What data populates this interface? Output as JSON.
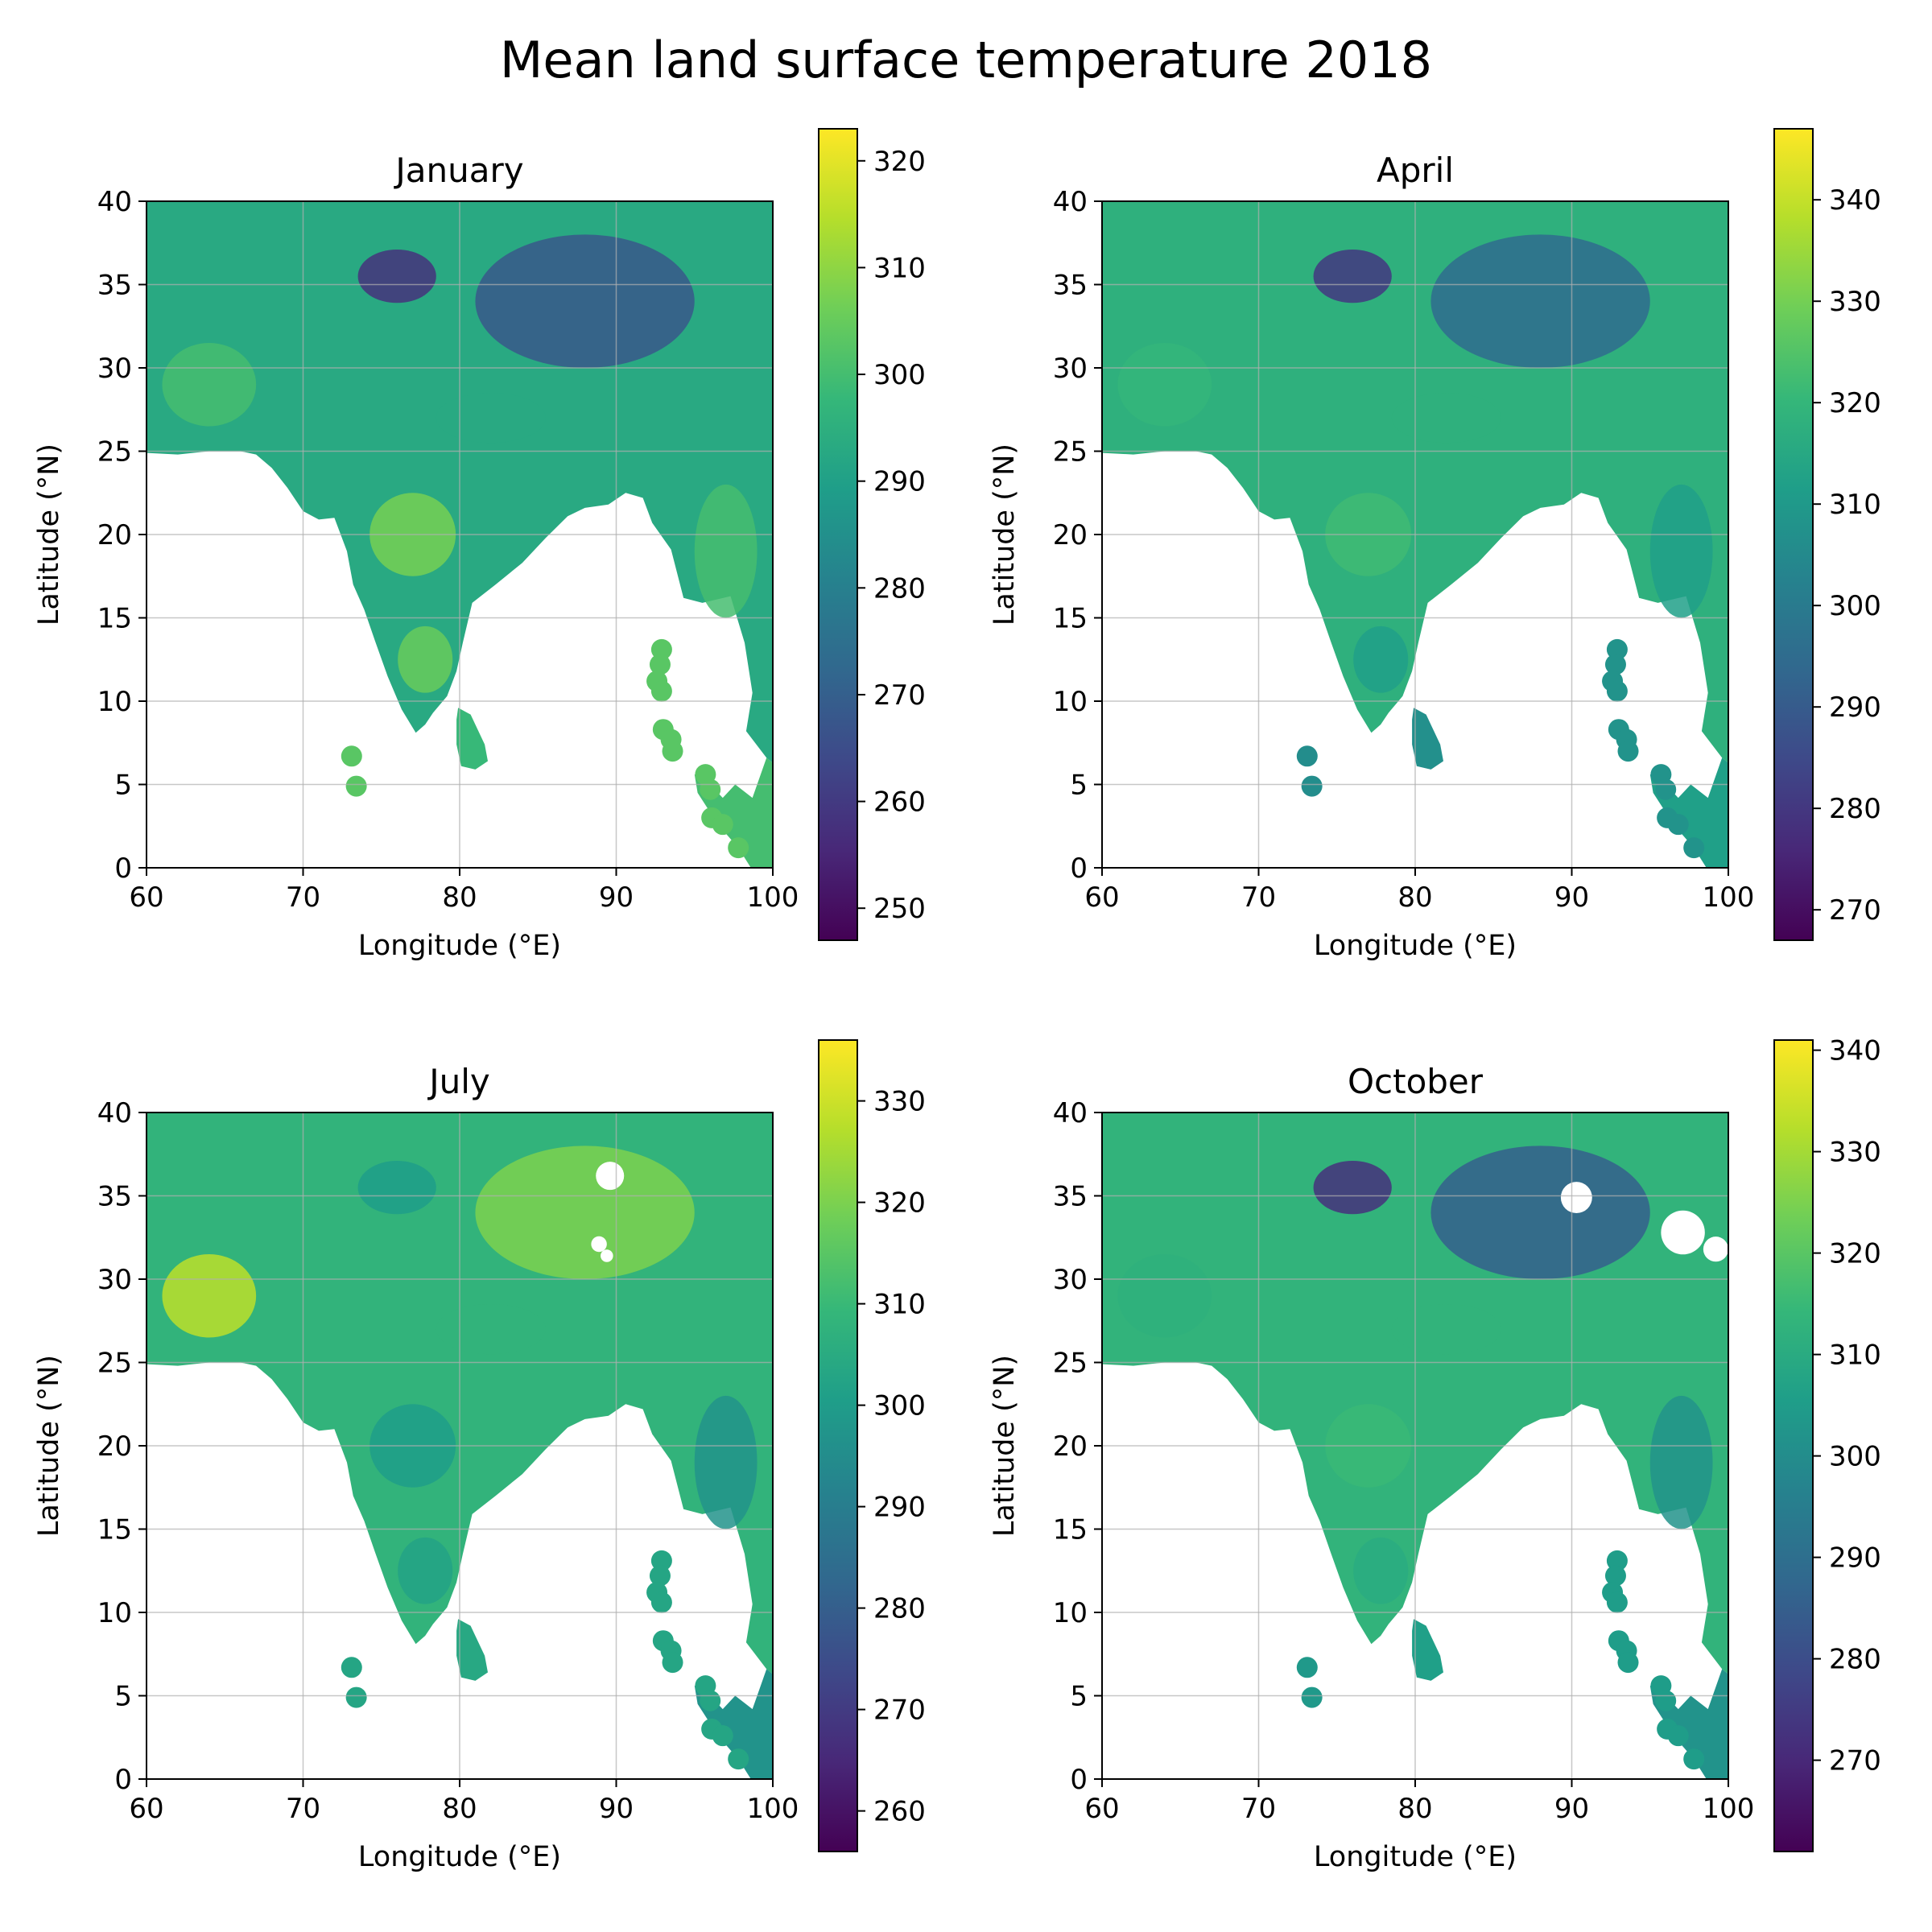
{
  "title": "Mean land surface temperature 2018",
  "colors": {
    "axis": "#000000",
    "grid": "#b0b0b0",
    "ocean": "#ffffff",
    "viridis": [
      "#440154",
      "#482878",
      "#3e4989",
      "#31688e",
      "#26828e",
      "#1f9e89",
      "#35b779",
      "#6ece58",
      "#b5de2b",
      "#fde725"
    ]
  },
  "chart_data": [
    {
      "type": "heatmap",
      "title": "January",
      "xlabel": "Longitude (°E)",
      "ylabel": "Latitude (°N)",
      "xlim": [
        60,
        100
      ],
      "ylim": [
        0,
        40
      ],
      "xticks": [
        60,
        70,
        80,
        90,
        100
      ],
      "yticks": [
        0,
        5,
        10,
        15,
        20,
        25,
        30,
        35,
        40
      ],
      "grid": true,
      "colorbar": {
        "label": "",
        "min": 247,
        "max": 323,
        "ticks": [
          250,
          260,
          270,
          280,
          290,
          300,
          310,
          320
        ]
      },
      "approx_values_K": {
        "tibetan_plateau_north": 268,
        "himalaya_karakoram": 258,
        "arabian_sea_coast": 300,
        "indo_gangetic_plain": 293,
        "central_deccan": 307,
        "south_india": 305,
        "sri_lanka": 298,
        "myanmar_thailand": 300,
        "andaman_islands": 303,
        "maldives": 303
      }
    },
    {
      "type": "heatmap",
      "title": "April",
      "xlabel": "Longitude (°E)",
      "ylabel": "Latitude (°N)",
      "xlim": [
        60,
        100
      ],
      "ylim": [
        0,
        40
      ],
      "xticks": [
        60,
        70,
        80,
        90,
        100
      ],
      "yticks": [
        0,
        5,
        10,
        15,
        20,
        25,
        30,
        35,
        40
      ],
      "grid": true,
      "colorbar": {
        "label": "",
        "min": 267,
        "max": 347,
        "ticks": [
          270,
          280,
          290,
          300,
          310,
          320,
          330,
          340
        ]
      },
      "approx_values_K": {
        "tibetan_plateau_north": 295,
        "himalaya_karakoram": 280,
        "arabian_sea_coast": 320,
        "indo_gangetic_plain": 318,
        "central_deccan": 322,
        "south_india": 312,
        "sri_lanka": 307,
        "myanmar_thailand": 312,
        "andaman_islands": 308,
        "maldives": 306
      }
    },
    {
      "type": "heatmap",
      "title": "July",
      "xlabel": "Longitude (°E)",
      "ylabel": "Latitude (°N)",
      "xlim": [
        60,
        100
      ],
      "ylim": [
        0,
        40
      ],
      "xticks": [
        60,
        70,
        80,
        90,
        100
      ],
      "yticks": [
        0,
        5,
        10,
        15,
        20,
        25,
        30,
        35,
        40
      ],
      "grid": true,
      "colorbar": {
        "label": "",
        "min": 256,
        "max": 336,
        "ticks": [
          260,
          270,
          280,
          290,
          300,
          310,
          320,
          330
        ]
      },
      "approx_values_K": {
        "tibetan_plateau_north": 320,
        "himalaya_karakoram": 300,
        "arabian_sea_coast": 328,
        "indo_gangetic_plain": 308,
        "central_deccan": 300,
        "south_india": 302,
        "sri_lanka": 304,
        "myanmar_thailand": 297,
        "andaman_islands": 303,
        "maldives": 303
      }
    },
    {
      "type": "heatmap",
      "title": "October",
      "xlabel": "Longitude (°E)",
      "ylabel": "Latitude (°N)",
      "xlim": [
        60,
        100
      ],
      "ylim": [
        0,
        40
      ],
      "xticks": [
        60,
        70,
        80,
        90,
        100
      ],
      "yticks": [
        0,
        5,
        10,
        15,
        20,
        25,
        30,
        35,
        40
      ],
      "grid": true,
      "colorbar": {
        "label": "",
        "min": 261,
        "max": 341,
        "ticks": [
          270,
          280,
          290,
          300,
          310,
          320,
          330,
          340
        ]
      },
      "approx_values_K": {
        "tibetan_plateau_north": 285,
        "himalaya_karakoram": 272,
        "arabian_sea_coast": 312,
        "indo_gangetic_plain": 313,
        "central_deccan": 315,
        "south_india": 310,
        "sri_lanka": 306,
        "myanmar_thailand": 302,
        "andaman_islands": 305,
        "maldives": 304
      }
    }
  ]
}
